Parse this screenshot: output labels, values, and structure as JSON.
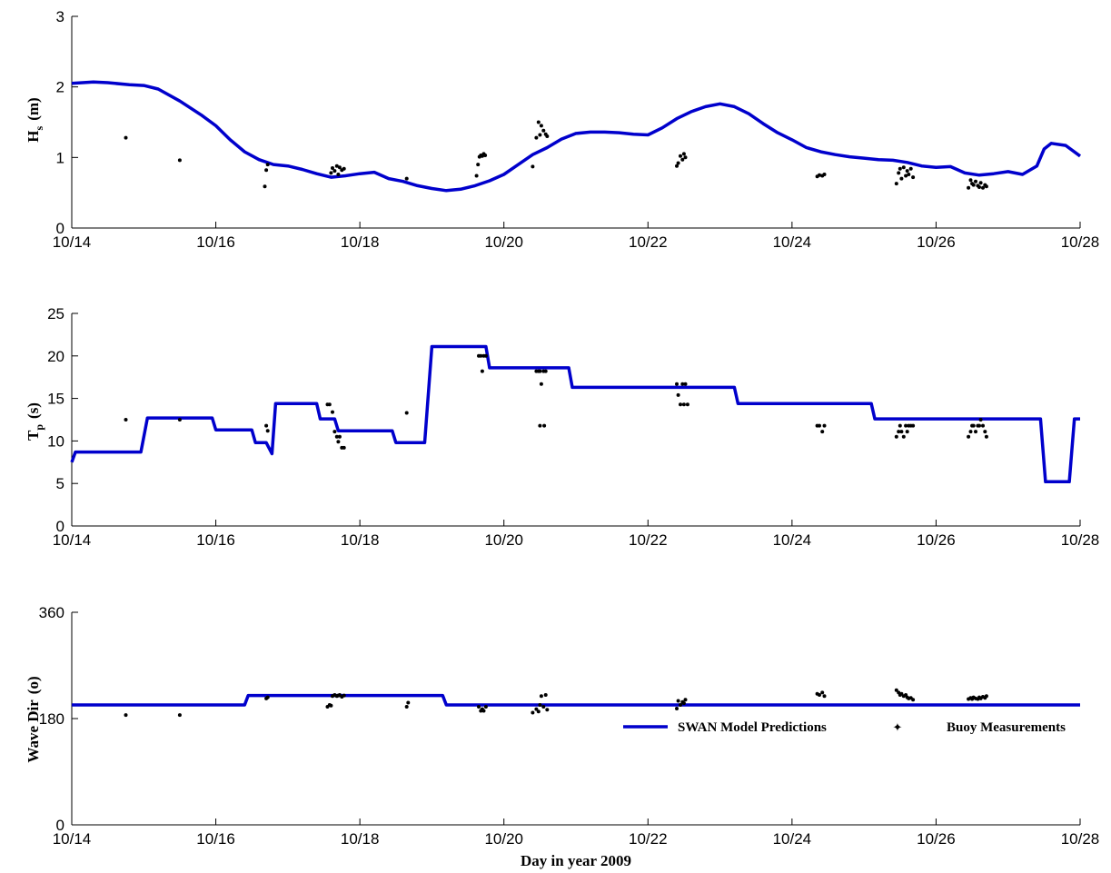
{
  "figure": {
    "xlabel": "Day in year 2009",
    "legend": {
      "placement": "bottom-right of third panel",
      "model_label": "SWAN Model Predictions",
      "buoy_label": "Buoy Measurements"
    }
  },
  "colors": {
    "model": "#0000cc",
    "buoy": "#000000",
    "axis": "#000000"
  },
  "chart_data": [
    {
      "type": "line",
      "panel": "Hs",
      "ylabel": "H_s (m)",
      "ylabel_main": "H",
      "ylabel_sub": "s",
      "ylabel_unit": "(m)",
      "ylim": [
        0,
        3
      ],
      "yticks": [
        0,
        1,
        2,
        3
      ],
      "xlim": [
        14,
        28
      ],
      "xticks": [
        14,
        16,
        18,
        20,
        22,
        24,
        26,
        28
      ],
      "xtick_labels": [
        "10/14",
        "10/16",
        "10/18",
        "10/20",
        "10/22",
        "10/24",
        "10/26",
        "10/28"
      ],
      "grid": false,
      "series": [
        {
          "name": "SWAN Model Predictions",
          "type": "line",
          "x": [
            14,
            14.3,
            14.5,
            14.8,
            15.0,
            15.2,
            15.5,
            15.8,
            16.0,
            16.2,
            16.4,
            16.6,
            16.8,
            17.0,
            17.2,
            17.4,
            17.6,
            17.8,
            18.0,
            18.2,
            18.4,
            18.6,
            18.8,
            19.0,
            19.2,
            19.4,
            19.6,
            19.8,
            20.0,
            20.2,
            20.4,
            20.6,
            20.8,
            21.0,
            21.2,
            21.4,
            21.6,
            21.8,
            22.0,
            22.2,
            22.4,
            22.6,
            22.8,
            23.0,
            23.2,
            23.4,
            23.6,
            23.8,
            24.0,
            24.2,
            24.4,
            24.6,
            24.8,
            25.0,
            25.2,
            25.4,
            25.6,
            25.8,
            26.0,
            26.2,
            26.4,
            26.6,
            26.8,
            27.0,
            27.2,
            27.4,
            27.5,
            27.6,
            27.8,
            28.0
          ],
          "y": [
            2.05,
            2.07,
            2.06,
            2.03,
            2.02,
            1.97,
            1.8,
            1.6,
            1.45,
            1.25,
            1.08,
            0.97,
            0.9,
            0.88,
            0.83,
            0.77,
            0.72,
            0.74,
            0.77,
            0.79,
            0.7,
            0.66,
            0.6,
            0.56,
            0.53,
            0.55,
            0.6,
            0.67,
            0.76,
            0.9,
            1.04,
            1.14,
            1.26,
            1.34,
            1.36,
            1.36,
            1.35,
            1.33,
            1.32,
            1.42,
            1.55,
            1.65,
            1.72,
            1.76,
            1.72,
            1.62,
            1.48,
            1.35,
            1.25,
            1.14,
            1.08,
            1.04,
            1.01,
            0.99,
            0.97,
            0.96,
            0.93,
            0.88,
            0.86,
            0.87,
            0.78,
            0.75,
            0.77,
            0.8,
            0.76,
            0.88,
            1.12,
            1.2,
            1.17,
            1.02
          ]
        },
        {
          "name": "Buoy Measurements",
          "type": "scatter",
          "x": [
            14.75,
            15.5,
            16.68,
            16.7,
            16.72,
            17.6,
            17.62,
            17.65,
            17.68,
            17.7,
            17.72,
            17.75,
            17.78,
            18.65,
            19.62,
            19.64,
            19.66,
            19.68,
            19.7,
            19.72,
            19.74,
            20.4,
            20.45,
            20.48,
            20.5,
            20.52,
            20.55,
            20.58,
            20.6,
            22.4,
            22.42,
            22.45,
            22.48,
            22.5,
            22.52,
            24.35,
            24.38,
            24.42,
            24.45,
            25.45,
            25.48,
            25.5,
            25.52,
            25.55,
            25.58,
            25.6,
            25.62,
            25.65,
            25.68,
            26.45,
            26.48,
            26.5,
            26.52,
            26.55,
            26.58,
            26.6,
            26.62,
            26.65,
            26.68,
            26.7
          ],
          "y": [
            1.28,
            0.96,
            0.59,
            0.82,
            0.9,
            0.78,
            0.85,
            0.81,
            0.88,
            0.76,
            0.86,
            0.82,
            0.84,
            0.7,
            0.74,
            0.9,
            1.01,
            1.03,
            1.02,
            1.05,
            1.03,
            0.87,
            1.28,
            1.5,
            1.32,
            1.45,
            1.38,
            1.33,
            1.3,
            0.88,
            0.92,
            1.02,
            0.97,
            1.05,
            1.0,
            0.73,
            0.75,
            0.74,
            0.76,
            0.63,
            0.78,
            0.84,
            0.7,
            0.86,
            0.74,
            0.81,
            0.76,
            0.84,
            0.72,
            0.57,
            0.68,
            0.63,
            0.61,
            0.66,
            0.6,
            0.58,
            0.64,
            0.57,
            0.61,
            0.59
          ]
        }
      ]
    },
    {
      "type": "line",
      "panel": "Tp",
      "ylabel": "T_p (s)",
      "ylabel_main": "T",
      "ylabel_sub": "p",
      "ylabel_unit": "(s)",
      "ylim": [
        0,
        25
      ],
      "yticks": [
        0,
        5,
        10,
        15,
        20,
        25
      ],
      "xlim": [
        14,
        28
      ],
      "xticks": [
        14,
        16,
        18,
        20,
        22,
        24,
        26,
        28
      ],
      "xtick_labels": [
        "10/14",
        "10/16",
        "10/18",
        "10/20",
        "10/22",
        "10/24",
        "10/26",
        "10/28"
      ],
      "grid": false,
      "series": [
        {
          "name": "SWAN Model Predictions",
          "type": "line",
          "x": [
            14.0,
            14.05,
            14.1,
            14.96,
            15.05,
            15.95,
            16.0,
            16.5,
            16.55,
            16.7,
            16.78,
            16.83,
            16.88,
            17.4,
            17.45,
            17.65,
            17.7,
            18.45,
            18.5,
            18.9,
            19.0,
            19.75,
            19.8,
            20.9,
            20.95,
            23.2,
            23.25,
            25.1,
            25.15,
            27.45,
            27.52,
            27.85,
            27.92,
            28.0
          ],
          "y": [
            7.5,
            8.7,
            8.7,
            8.7,
            12.7,
            12.7,
            11.3,
            11.3,
            9.8,
            9.8,
            8.5,
            14.4,
            14.4,
            14.4,
            12.6,
            12.6,
            11.2,
            11.2,
            9.8,
            9.8,
            21.1,
            21.1,
            18.6,
            18.6,
            16.3,
            16.3,
            14.4,
            14.4,
            12.6,
            12.6,
            5.2,
            5.2,
            12.6,
            12.6
          ]
        },
        {
          "name": "Buoy Measurements",
          "type": "scatter",
          "x": [
            14.75,
            15.5,
            16.7,
            16.72,
            17.55,
            17.58,
            17.62,
            17.65,
            17.68,
            17.7,
            17.72,
            17.75,
            17.78,
            18.65,
            19.65,
            19.68,
            19.7,
            19.72,
            19.75,
            20.45,
            20.48,
            20.5,
            20.52,
            20.55,
            20.58,
            20.5,
            20.56,
            22.4,
            22.42,
            22.45,
            22.48,
            22.5,
            22.52,
            22.55,
            24.35,
            24.38,
            24.42,
            24.45,
            25.45,
            25.48,
            25.5,
            25.52,
            25.55,
            25.58,
            25.6,
            25.62,
            25.65,
            25.68,
            26.45,
            26.48,
            26.5,
            26.52,
            26.55,
            26.58,
            26.6,
            26.62,
            26.65,
            26.68,
            26.7
          ],
          "y": [
            12.5,
            12.5,
            11.8,
            11.2,
            14.3,
            14.3,
            13.4,
            11.1,
            10.5,
            9.9,
            10.5,
            9.2,
            9.2,
            13.3,
            20.0,
            20.0,
            18.2,
            20.0,
            20.0,
            18.2,
            18.2,
            18.2,
            16.7,
            18.2,
            18.2,
            11.8,
            11.8,
            16.7,
            15.4,
            14.3,
            16.7,
            14.3,
            16.7,
            14.3,
            11.8,
            11.8,
            11.1,
            11.8,
            10.5,
            11.1,
            11.8,
            11.1,
            10.5,
            11.8,
            11.1,
            11.8,
            11.8,
            11.8,
            10.5,
            11.1,
            11.8,
            11.8,
            11.1,
            11.8,
            11.8,
            12.5,
            11.8,
            11.1,
            10.5
          ]
        }
      ]
    },
    {
      "type": "line",
      "panel": "Wave Dir",
      "ylabel": "Wave Dir (o)",
      "ylabel_main": "Wave Dir",
      "ylabel_unit": "(o)",
      "ylim": [
        0,
        360
      ],
      "yticks": [
        0,
        180,
        360
      ],
      "xlim": [
        14,
        28
      ],
      "xticks": [
        14,
        16,
        18,
        20,
        22,
        24,
        26,
        28
      ],
      "xtick_labels": [
        "10/14",
        "10/16",
        "10/18",
        "10/20",
        "10/22",
        "10/24",
        "10/26",
        "10/28"
      ],
      "grid": false,
      "series": [
        {
          "name": "SWAN Model Predictions",
          "type": "line",
          "x": [
            14.0,
            16.4,
            16.45,
            19.15,
            19.2,
            28.0
          ],
          "y": [
            203,
            203,
            219,
            219,
            203,
            203
          ]
        },
        {
          "name": "Buoy Measurements",
          "type": "scatter",
          "x": [
            14.75,
            15.5,
            16.7,
            16.72,
            17.55,
            17.58,
            17.6,
            17.62,
            17.65,
            17.68,
            17.7,
            17.72,
            17.75,
            17.78,
            18.65,
            18.67,
            19.65,
            19.68,
            19.7,
            19.72,
            19.75,
            20.4,
            20.45,
            20.48,
            20.5,
            20.52,
            20.55,
            20.58,
            20.6,
            22.4,
            22.42,
            22.45,
            22.48,
            22.5,
            22.52,
            24.35,
            24.38,
            24.42,
            24.45,
            25.45,
            25.48,
            25.5,
            25.52,
            25.55,
            25.58,
            25.6,
            25.62,
            25.65,
            25.68,
            26.45,
            26.48,
            26.5,
            26.52,
            26.55,
            26.58,
            26.6,
            26.62,
            26.65,
            26.68,
            26.7
          ],
          "y": [
            186,
            186,
            214,
            216,
            200,
            203,
            202,
            218,
            220,
            218,
            219,
            220,
            217,
            219,
            200,
            207,
            200,
            193,
            196,
            193,
            200,
            190,
            196,
            192,
            203,
            218,
            200,
            220,
            195,
            197,
            210,
            203,
            208,
            206,
            212,
            222,
            220,
            224,
            218,
            228,
            224,
            220,
            222,
            218,
            220,
            216,
            214,
            215,
            212,
            213,
            215,
            213,
            216,
            214,
            213,
            216,
            214,
            217,
            215,
            218
          ]
        }
      ]
    }
  ]
}
